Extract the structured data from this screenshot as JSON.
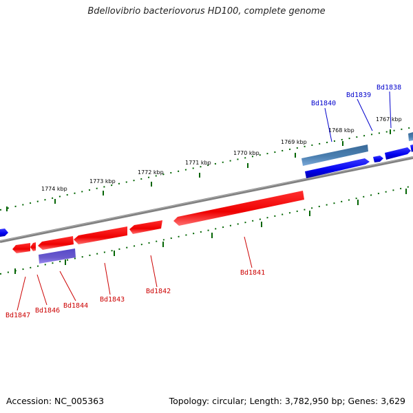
{
  "title": "Bdellovibrio bacteriovorus HD100, complete genome",
  "footer": {
    "accession": "Accession: NC_005363",
    "topology": "Topology: circular; Length: 3,782,950 bp; Genes: 3,629"
  },
  "ticks": {
    "outer": [
      "1774 kbp",
      "1773 kbp",
      "1772 kbp",
      "1771 kbp",
      "1770 kbp",
      "1769 kbp",
      "1768 kbp",
      "1767 kbp"
    ]
  },
  "genes": {
    "forward": [
      "Bd1840",
      "Bd1839",
      "Bd1838"
    ],
    "reverse": [
      "Bd1847",
      "Bd1846",
      "Bd1844",
      "Bd1843",
      "Bd1842",
      "Bd1841"
    ]
  },
  "colors": {
    "backbone": "#808080",
    "forward_gene": "#0000ee",
    "reverse_gene": "#ee0000",
    "forward_feature": "#4a7fb0",
    "reverse_feature": "#6a5acd",
    "tick": "#006400"
  }
}
